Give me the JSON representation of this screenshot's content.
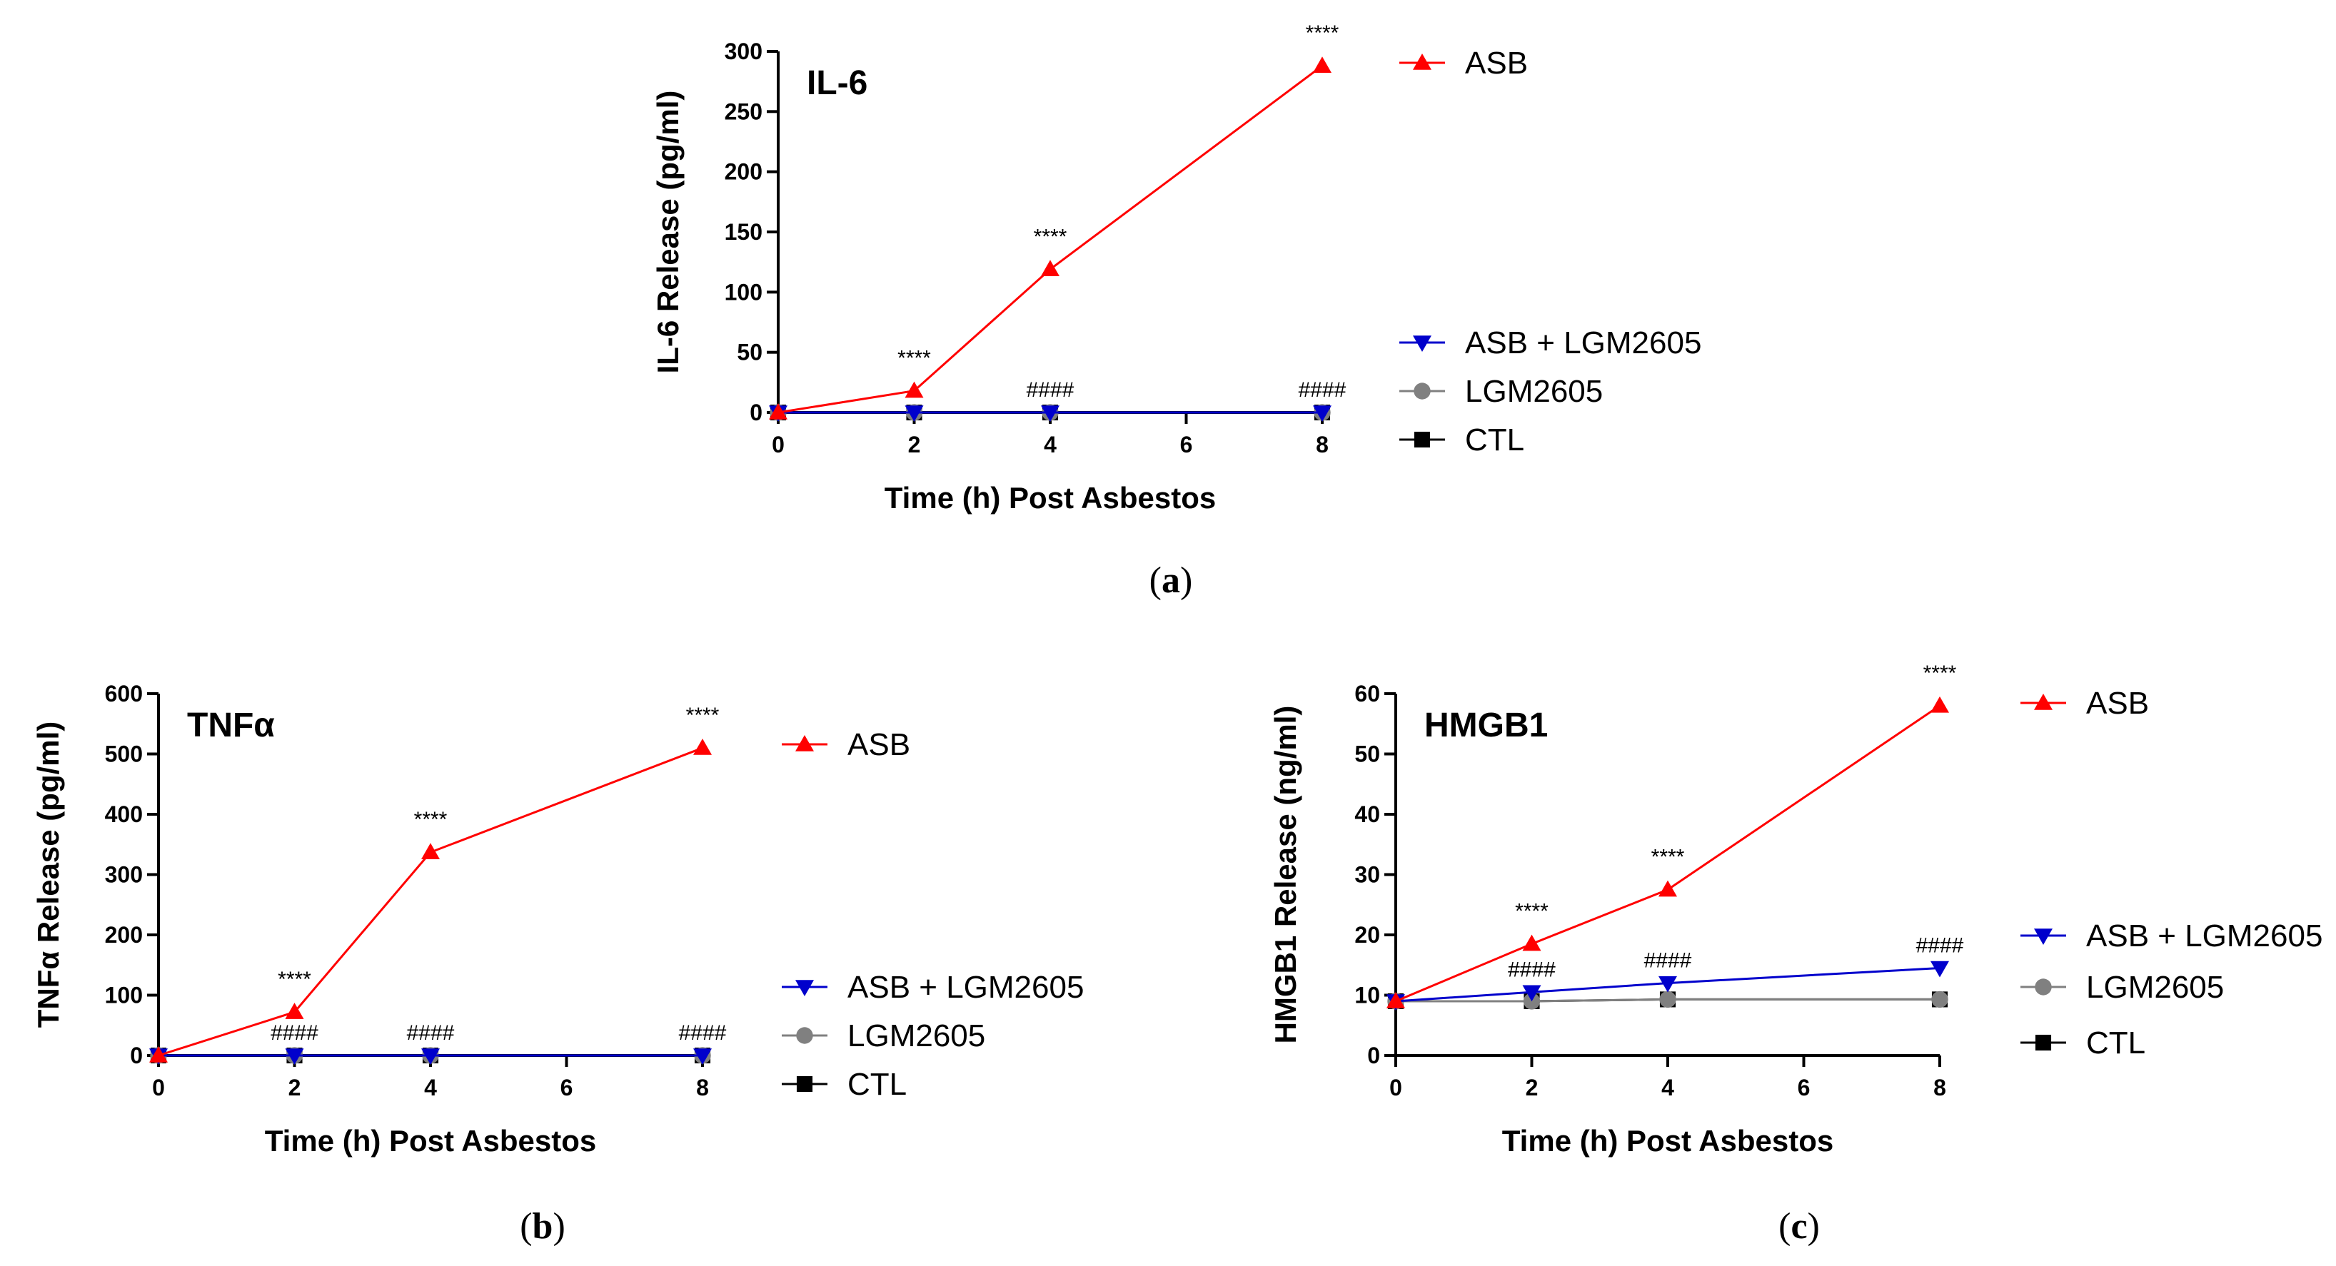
{
  "chart_data": [
    {
      "type": "line",
      "panel_caption": "a",
      "title": "IL-6",
      "xlabel": "Time (h) Post Asbestos",
      "ylabel": "IL-6 Release (pg/ml)",
      "xlim": [
        0,
        8
      ],
      "ylim": [
        0,
        300
      ],
      "xticks": [
        0,
        2,
        4,
        6,
        8
      ],
      "yticks": [
        0,
        50,
        100,
        150,
        200,
        250,
        300
      ],
      "grid": false,
      "series": [
        {
          "name": "ASB",
          "color": "#ff0000",
          "marker": "triangle-up",
          "x": [
            0,
            2,
            4,
            8
          ],
          "y": [
            0,
            18,
            119,
            288
          ]
        },
        {
          "name": "ASB + LGM2605",
          "color": "#0000cc",
          "marker": "triangle-down",
          "x": [
            0,
            2,
            4,
            8
          ],
          "y": [
            0,
            0,
            0,
            0
          ]
        },
        {
          "name": "LGM2605",
          "color": "#808080",
          "marker": "circle",
          "x": [
            0,
            2,
            4,
            8
          ],
          "y": [
            0,
            0,
            0,
            0
          ]
        },
        {
          "name": "CTL",
          "color": "#000000",
          "marker": "square",
          "x": [
            0,
            2,
            4,
            8
          ],
          "y": [
            0,
            0,
            0,
            0
          ]
        }
      ],
      "annotations": [
        {
          "text": "****",
          "x": 2,
          "y": 18,
          "placement": "above"
        },
        {
          "text": "****",
          "x": 4,
          "y": 119,
          "placement": "above"
        },
        {
          "text": "****",
          "x": 8,
          "y": 288,
          "placement": "above"
        },
        {
          "text": "####",
          "x": 4,
          "y": 0,
          "placement": "above"
        },
        {
          "text": "####",
          "x": 8,
          "y": 0,
          "placement": "above"
        }
      ]
    },
    {
      "type": "line",
      "panel_caption": "b",
      "title": "TNFα",
      "xlabel": "Time (h) Post Asbestos",
      "ylabel": "TNFα Release (pg/ml)",
      "xlim": [
        0,
        8
      ],
      "ylim": [
        0,
        600
      ],
      "xticks": [
        0,
        2,
        4,
        6,
        8
      ],
      "yticks": [
        0,
        100,
        200,
        300,
        400,
        500,
        600
      ],
      "grid": false,
      "series": [
        {
          "name": "ASB",
          "color": "#ff0000",
          "marker": "triangle-up",
          "x": [
            0,
            2,
            4,
            8
          ],
          "y": [
            0,
            72,
            337,
            510
          ]
        },
        {
          "name": "ASB + LGM2605",
          "color": "#0000cc",
          "marker": "triangle-down",
          "x": [
            0,
            2,
            4,
            8
          ],
          "y": [
            0,
            0,
            0,
            0
          ]
        },
        {
          "name": "LGM2605",
          "color": "#808080",
          "marker": "circle",
          "x": [
            0,
            2,
            4,
            8
          ],
          "y": [
            0,
            0,
            0,
            0
          ]
        },
        {
          "name": "CTL",
          "color": "#000000",
          "marker": "square",
          "x": [
            0,
            2,
            4,
            8
          ],
          "y": [
            0,
            0,
            0,
            0
          ]
        }
      ],
      "annotations": [
        {
          "text": "****",
          "x": 2,
          "y": 72,
          "placement": "above"
        },
        {
          "text": "****",
          "x": 4,
          "y": 337,
          "placement": "above"
        },
        {
          "text": "****",
          "x": 8,
          "y": 510,
          "placement": "above"
        },
        {
          "text": "####",
          "x": 2,
          "y": 0,
          "placement": "above"
        },
        {
          "text": "####",
          "x": 4,
          "y": 0,
          "placement": "above"
        },
        {
          "text": "####",
          "x": 8,
          "y": 0,
          "placement": "above"
        }
      ]
    },
    {
      "type": "line",
      "panel_caption": "c",
      "title": "HMGB1",
      "xlabel": "Time (h) Post Asbestos",
      "ylabel": "HMGB1 Release (ng/ml)",
      "xlim": [
        0,
        8
      ],
      "ylim": [
        0,
        60
      ],
      "xticks": [
        0,
        2,
        4,
        6,
        8
      ],
      "yticks": [
        0,
        10,
        20,
        30,
        40,
        50,
        60
      ],
      "grid": false,
      "series": [
        {
          "name": "ASB",
          "color": "#ff0000",
          "marker": "triangle-up",
          "x": [
            0,
            2,
            4,
            8
          ],
          "y": [
            9,
            18.5,
            27.5,
            58
          ]
        },
        {
          "name": "ASB + LGM2605",
          "color": "#0000cc",
          "marker": "triangle-down",
          "x": [
            0,
            2,
            4,
            8
          ],
          "y": [
            9,
            10.5,
            12,
            14.5
          ]
        },
        {
          "name": "LGM2605",
          "color": "#808080",
          "marker": "circle",
          "x": [
            0,
            2,
            4,
            8
          ],
          "y": [
            9,
            9,
            9.3,
            9.3
          ]
        },
        {
          "name": "CTL",
          "color": "#000000",
          "marker": "square",
          "x": [
            0,
            2,
            4,
            8
          ],
          "y": [
            9,
            9,
            9.3,
            9.3
          ]
        }
      ],
      "annotations": [
        {
          "text": "****",
          "x": 2,
          "y": 18.5,
          "placement": "above"
        },
        {
          "text": "****",
          "x": 4,
          "y": 27.5,
          "placement": "above"
        },
        {
          "text": "****",
          "x": 8,
          "y": 58,
          "placement": "above"
        },
        {
          "text": "####",
          "x": 2,
          "y": 10.5,
          "placement": "above"
        },
        {
          "text": "####",
          "x": 4,
          "y": 12,
          "placement": "above"
        },
        {
          "text": "####",
          "x": 8,
          "y": 14.5,
          "placement": "above"
        }
      ]
    }
  ]
}
